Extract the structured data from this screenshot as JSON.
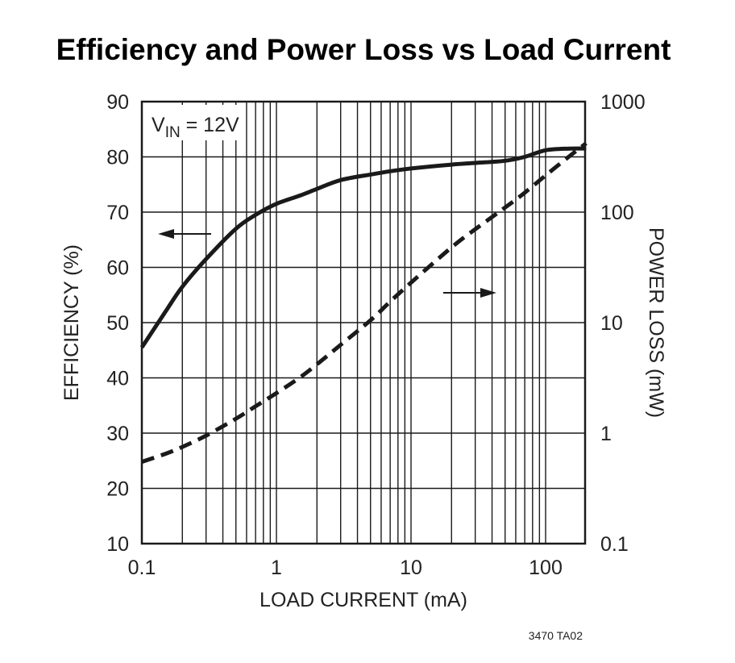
{
  "chart_data": {
    "type": "line",
    "title": "Efficiency and Power Loss vs Load Current",
    "xlabel": "LOAD CURRENT (mA)",
    "ylabel": "EFFICIENCY (%)",
    "y2label": "POWER LOSS (mW)",
    "xscale": "log",
    "xlim": [
      0.1,
      200
    ],
    "ylim": [
      10,
      90
    ],
    "y2scale": "log",
    "y2lim": [
      0.1,
      1000
    ],
    "grid": true,
    "x_ticks": [
      "0.1",
      "1",
      "10",
      "100"
    ],
    "y_ticks": [
      "10",
      "20",
      "30",
      "40",
      "50",
      "60",
      "70",
      "80",
      "90"
    ],
    "y2_ticks": [
      "0.1",
      "1",
      "10",
      "100",
      "1000"
    ],
    "annotation": {
      "prefix": "V",
      "subscript": "IN",
      "suffix": " = 12V"
    },
    "series": [
      {
        "axis": "left",
        "style": "solid",
        "color": "#1a1a1a",
        "x": [
          0.1,
          0.15,
          0.2,
          0.3,
          0.5,
          0.7,
          1,
          1.5,
          2,
          3,
          5,
          7,
          10,
          20,
          30,
          50,
          70,
          100,
          150,
          200
        ],
        "y": [
          45.5,
          52,
          56.5,
          61.5,
          67,
          69.5,
          71.5,
          73,
          74.2,
          75.8,
          76.8,
          77.4,
          77.9,
          78.6,
          78.9,
          79.3,
          80,
          81.2,
          81.5,
          81.5
        ]
      },
      {
        "axis": "right",
        "style": "dashed",
        "color": "#1a1a1a",
        "x": [
          0.1,
          0.15,
          0.2,
          0.3,
          0.5,
          0.7,
          1,
          1.5,
          2,
          3,
          5,
          7,
          10,
          20,
          30,
          50,
          70,
          100,
          150,
          200
        ],
        "y": [
          0.55,
          0.65,
          0.75,
          0.95,
          1.35,
          1.75,
          2.3,
          3.2,
          4.2,
          6.3,
          10.5,
          15.5,
          23,
          48,
          70,
          110,
          150,
          215,
          320,
          420
        ]
      }
    ],
    "figure_id": "3470 TA02"
  }
}
